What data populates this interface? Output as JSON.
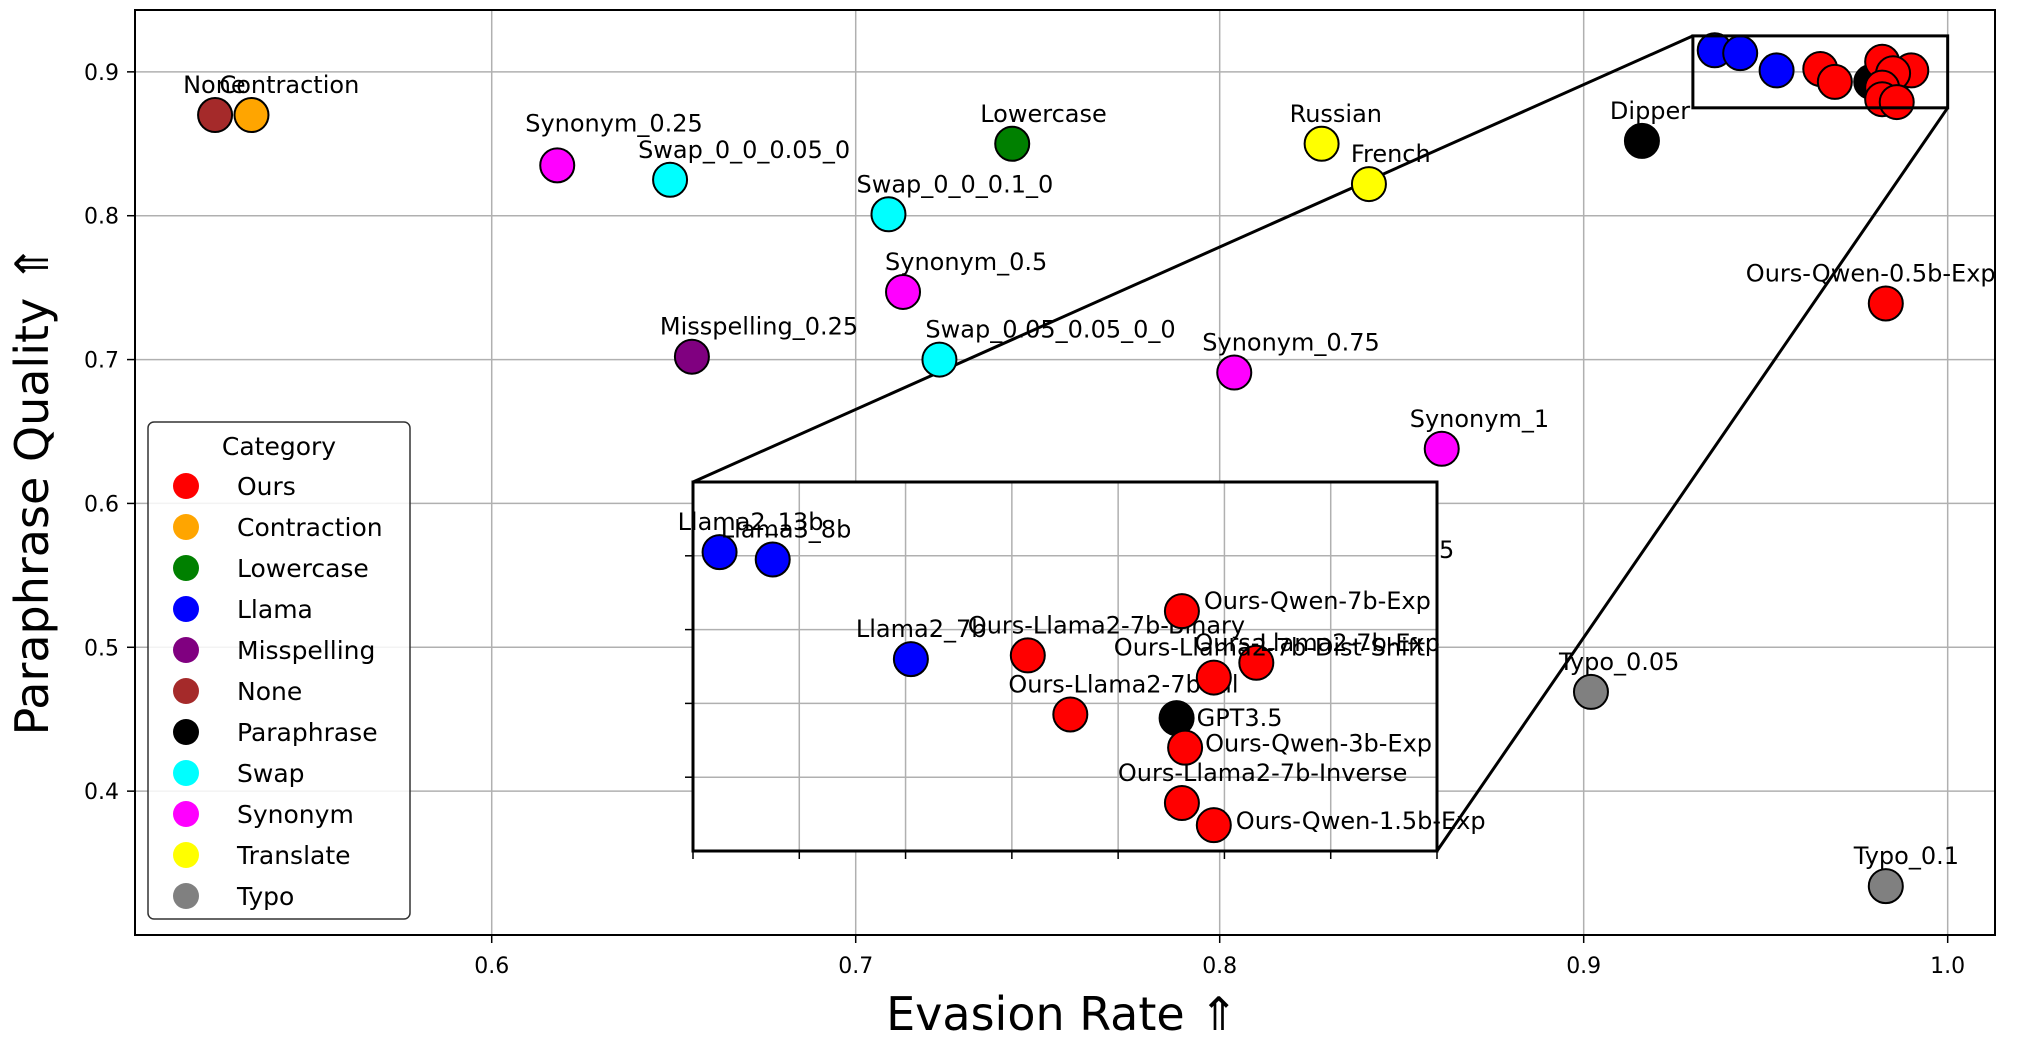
{
  "chart_data": {
    "type": "scatter",
    "title": "",
    "xlabel": "Evasion Rate  ⇑",
    "ylabel": "Paraphrase Quality  ⇑",
    "xlim": [
      0.502,
      1.013
    ],
    "ylim": [
      0.3,
      0.943
    ],
    "xticks": [
      "0.6",
      "0.7",
      "0.8",
      "0.9",
      "1.0"
    ],
    "yticks": [
      "0.4",
      "0.5",
      "0.6",
      "0.7",
      "0.8",
      "0.9"
    ],
    "grid": true,
    "legend": {
      "title": "Category",
      "placement": "lower-left",
      "entries": [
        {
          "name": "Ours",
          "color": "#ff0000"
        },
        {
          "name": "Contraction",
          "color": "#ffa500"
        },
        {
          "name": "Lowercase",
          "color": "#008000"
        },
        {
          "name": "Llama",
          "color": "#0000ff"
        },
        {
          "name": "Misspelling",
          "color": "#800080"
        },
        {
          "name": "None",
          "color": "#a52a2a"
        },
        {
          "name": "Paraphrase",
          "color": "#000000"
        },
        {
          "name": "Swap",
          "color": "#00ffff"
        },
        {
          "name": "Synonym",
          "color": "#ff00ff"
        },
        {
          "name": "Translate",
          "color": "#ffff00"
        },
        {
          "name": "Typo",
          "color": "#808080"
        }
      ]
    },
    "points": [
      {
        "label": "None",
        "category": "None",
        "x": 0.524,
        "y": 0.87
      },
      {
        "label": "Contraction",
        "category": "Contraction",
        "x": 0.534,
        "y": 0.87
      },
      {
        "label": "Synonym_0.25",
        "category": "Synonym",
        "x": 0.618,
        "y": 0.835
      },
      {
        "label": "Swap_0_0_0.05_0",
        "category": "Swap",
        "x": 0.649,
        "y": 0.825
      },
      {
        "label": "Lowercase",
        "category": "Lowercase",
        "x": 0.743,
        "y": 0.85
      },
      {
        "label": "Swap_0_0_0.1_0",
        "category": "Swap",
        "x": 0.709,
        "y": 0.801
      },
      {
        "label": "Synonym_0.5",
        "category": "Synonym",
        "x": 0.713,
        "y": 0.747
      },
      {
        "label": "Misspelling_0.25",
        "category": "Misspelling",
        "x": 0.655,
        "y": 0.702
      },
      {
        "label": "Swap_0.05_0.05_0_0",
        "category": "Swap",
        "x": 0.723,
        "y": 0.7
      },
      {
        "label": "Synonym_0.75",
        "category": "Synonym",
        "x": 0.804,
        "y": 0.691
      },
      {
        "label": "Russian",
        "category": "Translate",
        "x": 0.828,
        "y": 0.85
      },
      {
        "label": "French",
        "category": "Translate",
        "x": 0.841,
        "y": 0.822
      },
      {
        "label": "Dipper",
        "category": "Paraphrase",
        "x": 0.916,
        "y": 0.852
      },
      {
        "label": "Synonym_1",
        "category": "Synonym",
        "x": 0.861,
        "y": 0.638
      },
      {
        "label": "Ours-Qwen-0.5b-Exp",
        "category": "Ours",
        "x": 0.983,
        "y": 0.739
      },
      {
        "label": "Typo_0.05",
        "category": "Typo",
        "x": 0.902,
        "y": 0.469
      },
      {
        "label": "Typo_0.1",
        "category": "Typo",
        "x": 0.983,
        "y": 0.334
      },
      {
        "label": "Llama2_13b",
        "category": "Llama",
        "x": 0.936,
        "y": 0.915
      },
      {
        "label": "Llama3_8b",
        "category": "Llama",
        "x": 0.943,
        "y": 0.913
      },
      {
        "label": "Llama2_7b",
        "category": "Llama",
        "x": 0.953,
        "y": 0.901
      },
      {
        "label": "Ours-Llama2-7b-Binary",
        "category": "Ours",
        "x": 0.965,
        "y": 0.902
      },
      {
        "label": "Ours-Llama2-7b-All",
        "category": "Ours",
        "x": 0.969,
        "y": 0.893
      },
      {
        "label": "GPT3.5",
        "category": "Paraphrase",
        "x": 0.979,
        "y": 0.893
      },
      {
        "label": "Ours-Qwen-7b-Exp",
        "category": "Ours",
        "x": 0.982,
        "y": 0.907
      },
      {
        "label": "Ours-Llama2-7b-Exp",
        "category": "Ours",
        "x": 0.99,
        "y": 0.901
      },
      {
        "label": "Ours-Llama2-7b-Dist-Shift",
        "category": "Ours",
        "x": 0.985,
        "y": 0.899
      },
      {
        "label": "Ours-Qwen-3b-Exp",
        "category": "Ours",
        "x": 0.982,
        "y": 0.889
      },
      {
        "label": "Ours-Llama2-7b-Inverse",
        "category": "Ours",
        "x": 0.982,
        "y": 0.881
      },
      {
        "label": "Ours-Qwen-1.5b-Exp",
        "category": "Ours",
        "x": 0.986,
        "y": 0.879
      }
    ],
    "inset": {
      "xlim": [
        0.93,
        1.0
      ],
      "ylim": [
        0.875,
        0.925
      ],
      "clip_label": "5",
      "points": [
        {
          "label": "Llama2_13b",
          "category": "Llama",
          "x": 0.9325,
          "y": 0.9155
        },
        {
          "label": "Llama3_8b",
          "category": "Llama",
          "x": 0.9375,
          "y": 0.9145
        },
        {
          "label": "Llama2_7b",
          "category": "Llama",
          "x": 0.9505,
          "y": 0.901
        },
        {
          "label": "Ours-Llama2-7b-Binary",
          "category": "Ours",
          "x": 0.9615,
          "y": 0.9015
        },
        {
          "label": "Ours-Llama2-7b-All",
          "category": "Ours",
          "x": 0.9655,
          "y": 0.8935
        },
        {
          "label": "GPT3.5",
          "category": "Paraphrase",
          "x": 0.9755,
          "y": 0.893
        },
        {
          "label": "Ours-Qwen-7b-Exp",
          "category": "Ours",
          "x": 0.976,
          "y": 0.9075
        },
        {
          "label": "Ours-Llama2-7b-Exp",
          "category": "Ours",
          "x": 0.983,
          "y": 0.9005
        },
        {
          "label": "Ours-Llama2-7b-Dist-Shift",
          "category": "Ours",
          "x": 0.979,
          "y": 0.8985
        },
        {
          "label": "Ours-Qwen-3b-Exp",
          "category": "Ours",
          "x": 0.9763,
          "y": 0.889
        },
        {
          "label": "Ours-Llama2-7b-Inverse",
          "category": "Ours",
          "x": 0.976,
          "y": 0.8815
        },
        {
          "label": "Ours-Qwen-1.5b-Exp",
          "category": "Ours",
          "x": 0.979,
          "y": 0.8785
        }
      ]
    }
  }
}
